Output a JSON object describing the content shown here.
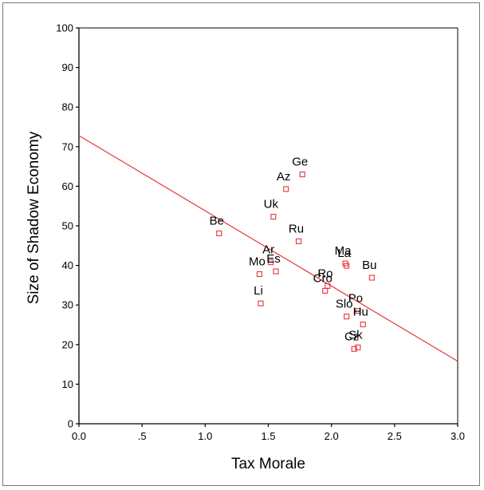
{
  "chart_data": {
    "type": "scatter",
    "title": "",
    "xlabel": "Tax Morale",
    "ylabel": "Size of Shadow Economy",
    "xlim": [
      0.0,
      3.0
    ],
    "ylim": [
      0,
      100
    ],
    "x_ticks": [
      "0.0",
      ".5",
      "1.0",
      "1.5",
      "2.0",
      "2.5",
      "3.0"
    ],
    "y_ticks": [
      "0",
      "10",
      "20",
      "30",
      "40",
      "50",
      "60",
      "70",
      "80",
      "90",
      "100"
    ],
    "grid": false,
    "marker": "open-square",
    "marker_color": "#e8343a",
    "line_color": "#e8343a",
    "fit_line": {
      "x": [
        0.0,
        3.0
      ],
      "y": [
        72.8,
        15.8
      ]
    },
    "points": [
      {
        "label": "Be",
        "x": 1.11,
        "y": 48.1
      },
      {
        "label": "Ge",
        "x": 1.77,
        "y": 63.0
      },
      {
        "label": "Az",
        "x": 1.64,
        "y": 59.3
      },
      {
        "label": "Uk",
        "x": 1.54,
        "y": 52.3
      },
      {
        "label": "Ru",
        "x": 1.74,
        "y": 46.1
      },
      {
        "label": "Ar",
        "x": 1.52,
        "y": 40.8
      },
      {
        "label": "Es",
        "x": 1.56,
        "y": 38.5
      },
      {
        "label": "Mo",
        "x": 1.43,
        "y": 37.8
      },
      {
        "label": "Li",
        "x": 1.44,
        "y": 30.4
      },
      {
        "label": "Ma",
        "x": 2.11,
        "y": 40.5
      },
      {
        "label": "La",
        "x": 2.12,
        "y": 39.9
      },
      {
        "label": "Bu",
        "x": 2.32,
        "y": 36.9
      },
      {
        "label": "Ro",
        "x": 1.97,
        "y": 34.8
      },
      {
        "label": "Cro",
        "x": 1.95,
        "y": 33.6
      },
      {
        "label": "Slo",
        "x": 2.12,
        "y": 27.1
      },
      {
        "label": "Po",
        "x": 2.21,
        "y": 28.5
      },
      {
        "label": "Hu",
        "x": 2.25,
        "y": 25.1
      },
      {
        "label": "Cz",
        "x": 2.18,
        "y": 18.9
      },
      {
        "label": "Sk",
        "x": 2.21,
        "y": 19.3
      }
    ]
  }
}
